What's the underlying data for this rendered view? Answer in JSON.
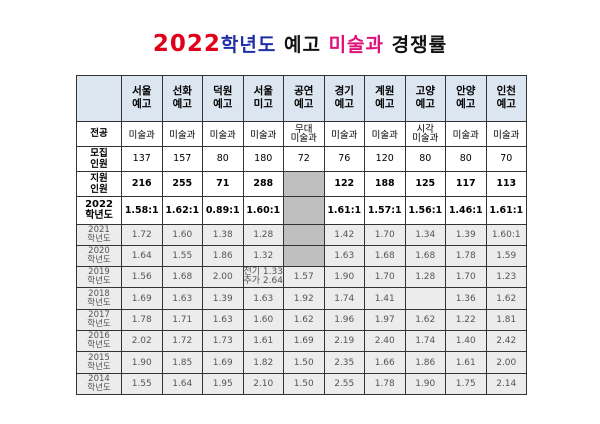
{
  "title": {
    "year": "2022",
    "part1": "학년도",
    "part2": "예고",
    "part3": "미술과",
    "part4": "경쟁률"
  },
  "schools": [
    {
      "line1": "서울",
      "line2": "예고"
    },
    {
      "line1": "선화",
      "line2": "예고"
    },
    {
      "line1": "덕원",
      "line2": "예고"
    },
    {
      "line1": "서울",
      "line2": "미고"
    },
    {
      "line1": "공연",
      "line2": "예고"
    },
    {
      "line1": "경기",
      "line2": "예고"
    },
    {
      "line1": "계원",
      "line2": "예고"
    },
    {
      "line1": "고양",
      "line2": "예고"
    },
    {
      "line1": "안양",
      "line2": "예고"
    },
    {
      "line1": "인천",
      "line2": "예고"
    }
  ],
  "major": {
    "label": "전공",
    "values": [
      "미술과",
      "미술과",
      "미술과",
      "미술과",
      "무대\n미술과",
      "미술과",
      "미술과",
      "시각\n미술과",
      "미술과",
      "미술과"
    ]
  },
  "mojip": {
    "label1": "모집",
    "label2": "인원",
    "values": [
      "137",
      "157",
      "80",
      "180",
      "72",
      "76",
      "120",
      "80",
      "80",
      "70"
    ]
  },
  "jiwon": {
    "label1": "지원",
    "label2": "인원",
    "values": [
      "216",
      "255",
      "71",
      "288",
      "",
      "122",
      "188",
      "125",
      "117",
      "113"
    ]
  },
  "ratio": {
    "label1": "2022",
    "label2": "학년도",
    "values": [
      "1.58:1",
      "1.62:1",
      "0.89:1",
      "1.60:1",
      "",
      "1.61:1",
      "1.57:1",
      "1.56:1",
      "1.46:1",
      "1.61:1"
    ]
  },
  "history": [
    {
      "year": "2021",
      "suffix": "학년도",
      "values": [
        "1.72",
        "1.60",
        "1.38",
        "1.28",
        "",
        "1.42",
        "1.70",
        "1.34",
        "1.39",
        "1.60:1"
      ]
    },
    {
      "year": "2020",
      "suffix": "학년도",
      "values": [
        "1.64",
        "1.55",
        "1.86",
        "1.32",
        "",
        "1.63",
        "1.68",
        "1.68",
        "1.78",
        "1.59"
      ]
    },
    {
      "year": "2019",
      "suffix": "학년도",
      "values": [
        "1.56",
        "1.68",
        "2.00",
        "전기 1.33\n추가 2.64",
        "1.57",
        "1.90",
        "1.70",
        "1.28",
        "1.70",
        "1.23"
      ]
    },
    {
      "year": "2018",
      "suffix": "학년도",
      "values": [
        "1.69",
        "1.63",
        "1.39",
        "1.63",
        "1.92",
        "1.74",
        "1.41",
        "",
        "1.36",
        "1.62"
      ]
    },
    {
      "year": "2017",
      "suffix": "학년도",
      "values": [
        "1.78",
        "1.71",
        "1.63",
        "1.60",
        "1.62",
        "1.96",
        "1.97",
        "1.62",
        "1.22",
        "1.81"
      ]
    },
    {
      "year": "2016",
      "suffix": "학년도",
      "values": [
        "2.02",
        "1.72",
        "1.73",
        "1.61",
        "1.69",
        "2.19",
        "2.40",
        "1.74",
        "1.40",
        "2.42"
      ]
    },
    {
      "year": "2015",
      "suffix": "학년도",
      "values": [
        "1.90",
        "1.85",
        "1.69",
        "1.82",
        "1.50",
        "2.35",
        "1.66",
        "1.86",
        "1.61",
        "2.00"
      ]
    },
    {
      "year": "2014",
      "suffix": "학년도",
      "values": [
        "1.55",
        "1.64",
        "1.95",
        "2.10",
        "1.50",
        "2.55",
        "1.78",
        "1.90",
        "1.75",
        "2.14"
      ]
    }
  ],
  "colors": {
    "title_year": "#e0001a",
    "title_blue": "#1f2fa8",
    "title_pink": "#e0107a",
    "header_bg": "#dce6f1",
    "history_bg": "#ececec",
    "shaded": "#bfbfbf"
  }
}
